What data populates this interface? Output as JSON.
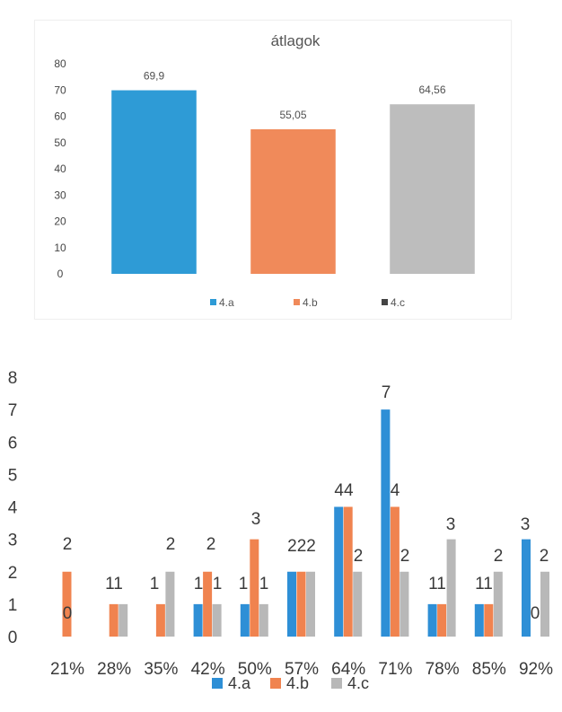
{
  "chart_data": [
    {
      "type": "bar",
      "title": "átlagok",
      "categories": [
        "4.a",
        "4.b",
        "4.c"
      ],
      "values": [
        69.9,
        55.05,
        64.56
      ],
      "value_labels": [
        "69,9",
        "55,05",
        "64,56"
      ],
      "colors": [
        "#2e9bd6",
        "#f08a5a",
        "#bdbdbd"
      ],
      "ylim": [
        0,
        80
      ],
      "yticks": [
        "0",
        "10",
        "20",
        "30",
        "40",
        "50",
        "60",
        "70",
        "80"
      ],
      "grid": false,
      "legend": {
        "position": "bottom",
        "entries": [
          "4.a",
          "4.b",
          "4.c"
        ]
      }
    },
    {
      "type": "bar",
      "title": "",
      "categories": [
        "21%",
        "28%",
        "35%",
        "42%",
        "50%",
        "57%",
        "64%",
        "71%",
        "78%",
        "85%",
        "92%"
      ],
      "series": [
        {
          "name": "4.a",
          "color": "#2e8fd6",
          "values": [
            0,
            0,
            0,
            1,
            1,
            2,
            4,
            7,
            1,
            1,
            3
          ]
        },
        {
          "name": "4.b",
          "color": "#f0834f",
          "values": [
            2,
            1,
            1,
            2,
            3,
            2,
            4,
            4,
            1,
            1,
            0
          ]
        },
        {
          "name": "4.c",
          "color": "#b8b8b8",
          "values": [
            0,
            1,
            2,
            1,
            1,
            2,
            2,
            2,
            3,
            2,
            2
          ]
        }
      ],
      "annotations": [
        {
          "category": "21%",
          "text": "2"
        },
        {
          "category": "21%",
          "text": "0"
        },
        {
          "category": "28%",
          "text": "11"
        },
        {
          "category": "35%",
          "text": "1"
        },
        {
          "category": "35%",
          "text": "2"
        },
        {
          "category": "42%",
          "text": "1"
        },
        {
          "category": "42%",
          "text": "2"
        },
        {
          "category": "42%",
          "text": "1"
        },
        {
          "category": "50%",
          "text": "1"
        },
        {
          "category": "50%",
          "text": "3"
        },
        {
          "category": "50%",
          "text": "1"
        },
        {
          "category": "57%",
          "text": "222"
        },
        {
          "category": "64%",
          "text": "44"
        },
        {
          "category": "64%",
          "text": "2"
        },
        {
          "category": "71%",
          "text": "7"
        },
        {
          "category": "71%",
          "text": "4"
        },
        {
          "category": "71%",
          "text": "2"
        },
        {
          "category": "78%",
          "text": "11"
        },
        {
          "category": "78%",
          "text": "3"
        },
        {
          "category": "85%",
          "text": "11"
        },
        {
          "category": "85%",
          "text": "2"
        },
        {
          "category": "92%",
          "text": "3"
        },
        {
          "category": "92%",
          "text": "0"
        },
        {
          "category": "92%",
          "text": "2"
        }
      ],
      "ylim": [
        0,
        8
      ],
      "yticks": [
        "0",
        "1",
        "2",
        "3",
        "4",
        "5",
        "6",
        "7",
        "8"
      ],
      "grid": false,
      "legend": {
        "position": "bottom",
        "entries": [
          "4.a",
          "4.b",
          "4.c"
        ]
      }
    }
  ]
}
